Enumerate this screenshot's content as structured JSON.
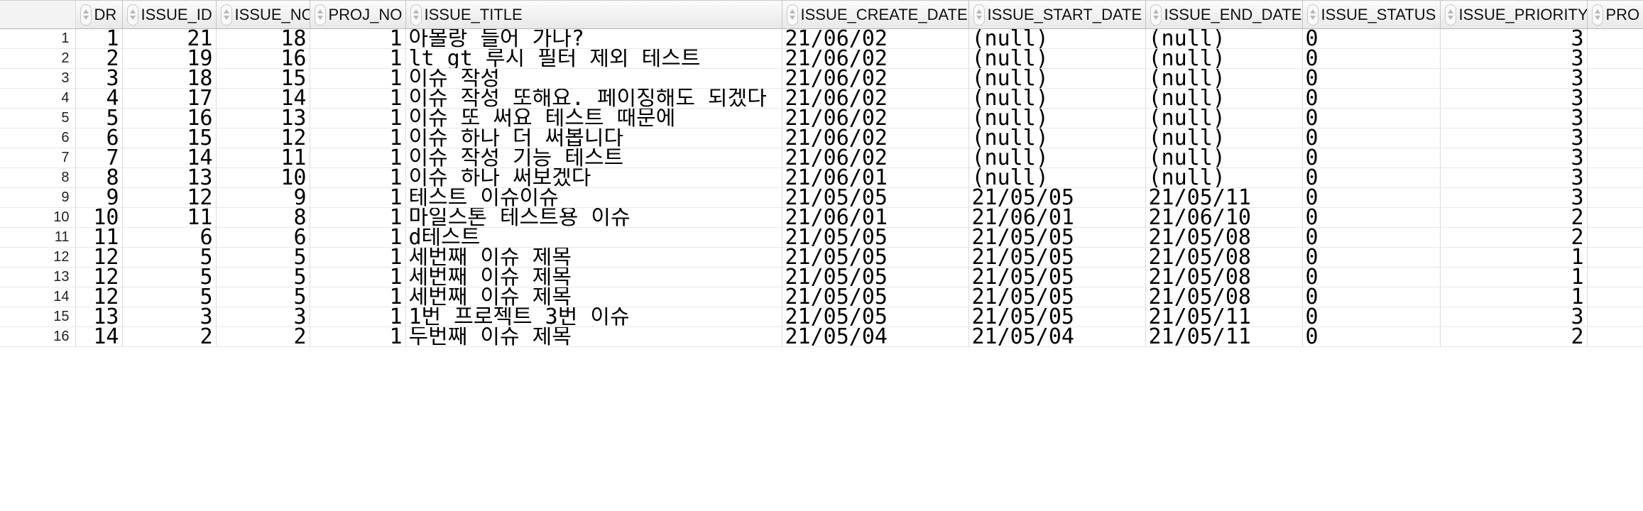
{
  "grid": {
    "columns": [
      {
        "key": "dr",
        "label": "DR",
        "align": "right"
      },
      {
        "key": "issue_id",
        "label": "ISSUE_ID",
        "align": "right"
      },
      {
        "key": "issue_no",
        "label": "ISSUE_NO",
        "align": "right"
      },
      {
        "key": "proj_no",
        "label": "PROJ_NO",
        "align": "right"
      },
      {
        "key": "issue_title",
        "label": "ISSUE_TITLE",
        "align": "left"
      },
      {
        "key": "issue_create_date",
        "label": "ISSUE_CREATE_DATE",
        "align": "left"
      },
      {
        "key": "issue_start_date",
        "label": "ISSUE_START_DATE",
        "align": "left"
      },
      {
        "key": "issue_end_date",
        "label": "ISSUE_END_DATE",
        "align": "left"
      },
      {
        "key": "issue_status",
        "label": "ISSUE_STATUS",
        "align": "left"
      },
      {
        "key": "issue_priority",
        "label": "ISSUE_PRIORITY",
        "align": "right"
      },
      {
        "key": "pro_cut",
        "label": "PRO",
        "align": "left"
      }
    ],
    "rows": [
      {
        "rownum": "1",
        "dr": "1",
        "issue_id": "21",
        "issue_no": "18",
        "proj_no": "1",
        "issue_title": "아몰랑 들어 가나?",
        "issue_create_date": "21/06/02",
        "issue_start_date": "(null)",
        "issue_end_date": "(null)",
        "issue_status": "0",
        "issue_priority": "3",
        "pro_cut": ""
      },
      {
        "rownum": "2",
        "dr": "2",
        "issue_id": "19",
        "issue_no": "16",
        "proj_no": "1",
        "issue_title": "lt gt 루시 필터 제외 테스트",
        "issue_create_date": "21/06/02",
        "issue_start_date": "(null)",
        "issue_end_date": "(null)",
        "issue_status": "0",
        "issue_priority": "3",
        "pro_cut": ""
      },
      {
        "rownum": "3",
        "dr": "3",
        "issue_id": "18",
        "issue_no": "15",
        "proj_no": "1",
        "issue_title": "이슈 작성",
        "issue_create_date": "21/06/02",
        "issue_start_date": "(null)",
        "issue_end_date": "(null)",
        "issue_status": "0",
        "issue_priority": "3",
        "pro_cut": ""
      },
      {
        "rownum": "4",
        "dr": "4",
        "issue_id": "17",
        "issue_no": "14",
        "proj_no": "1",
        "issue_title": "이슈 작성 또해요. 페이징해도 되겠다",
        "issue_create_date": "21/06/02",
        "issue_start_date": "(null)",
        "issue_end_date": "(null)",
        "issue_status": "0",
        "issue_priority": "3",
        "pro_cut": ""
      },
      {
        "rownum": "5",
        "dr": "5",
        "issue_id": "16",
        "issue_no": "13",
        "proj_no": "1",
        "issue_title": "이슈 또 써요 테스트 때문에",
        "issue_create_date": "21/06/02",
        "issue_start_date": "(null)",
        "issue_end_date": "(null)",
        "issue_status": "0",
        "issue_priority": "3",
        "pro_cut": ""
      },
      {
        "rownum": "6",
        "dr": "6",
        "issue_id": "15",
        "issue_no": "12",
        "proj_no": "1",
        "issue_title": "이슈 하나 더 써봅니다",
        "issue_create_date": "21/06/02",
        "issue_start_date": "(null)",
        "issue_end_date": "(null)",
        "issue_status": "0",
        "issue_priority": "3",
        "pro_cut": ""
      },
      {
        "rownum": "7",
        "dr": "7",
        "issue_id": "14",
        "issue_no": "11",
        "proj_no": "1",
        "issue_title": "이슈 작성 기능 테스트",
        "issue_create_date": "21/06/02",
        "issue_start_date": "(null)",
        "issue_end_date": "(null)",
        "issue_status": "0",
        "issue_priority": "3",
        "pro_cut": ""
      },
      {
        "rownum": "8",
        "dr": "8",
        "issue_id": "13",
        "issue_no": "10",
        "proj_no": "1",
        "issue_title": "이슈 하나 써보겠다",
        "issue_create_date": "21/06/01",
        "issue_start_date": "(null)",
        "issue_end_date": "(null)",
        "issue_status": "0",
        "issue_priority": "3",
        "pro_cut": ""
      },
      {
        "rownum": "9",
        "dr": "9",
        "issue_id": "12",
        "issue_no": "9",
        "proj_no": "1",
        "issue_title": "테스트 이슈이슈",
        "issue_create_date": "21/05/05",
        "issue_start_date": "21/05/05",
        "issue_end_date": "21/05/11",
        "issue_status": "0",
        "issue_priority": "3",
        "pro_cut": ""
      },
      {
        "rownum": "10",
        "dr": "10",
        "issue_id": "11",
        "issue_no": "8",
        "proj_no": "1",
        "issue_title": "마일스톤 테스트용 이슈",
        "issue_create_date": "21/06/01",
        "issue_start_date": "21/06/01",
        "issue_end_date": "21/06/10",
        "issue_status": "0",
        "issue_priority": "2",
        "pro_cut": ""
      },
      {
        "rownum": "11",
        "dr": "11",
        "issue_id": "6",
        "issue_no": "6",
        "proj_no": "1",
        "issue_title": "d테스트",
        "issue_create_date": "21/05/05",
        "issue_start_date": "21/05/05",
        "issue_end_date": "21/05/08",
        "issue_status": "0",
        "issue_priority": "2",
        "pro_cut": ""
      },
      {
        "rownum": "12",
        "dr": "12",
        "issue_id": "5",
        "issue_no": "5",
        "proj_no": "1",
        "issue_title": "세번째 이슈 제목",
        "issue_create_date": "21/05/05",
        "issue_start_date": "21/05/05",
        "issue_end_date": "21/05/08",
        "issue_status": "0",
        "issue_priority": "1",
        "pro_cut": ""
      },
      {
        "rownum": "13",
        "dr": "12",
        "issue_id": "5",
        "issue_no": "5",
        "proj_no": "1",
        "issue_title": "세번째 이슈 제목",
        "issue_create_date": "21/05/05",
        "issue_start_date": "21/05/05",
        "issue_end_date": "21/05/08",
        "issue_status": "0",
        "issue_priority": "1",
        "pro_cut": ""
      },
      {
        "rownum": "14",
        "dr": "12",
        "issue_id": "5",
        "issue_no": "5",
        "proj_no": "1",
        "issue_title": "세번째 이슈 제목",
        "issue_create_date": "21/05/05",
        "issue_start_date": "21/05/05",
        "issue_end_date": "21/05/08",
        "issue_status": "0",
        "issue_priority": "1",
        "pro_cut": ""
      },
      {
        "rownum": "15",
        "dr": "13",
        "issue_id": "3",
        "issue_no": "3",
        "proj_no": "1",
        "issue_title": "1번 프로젝트 3번 이슈",
        "issue_create_date": "21/05/05",
        "issue_start_date": "21/05/05",
        "issue_end_date": "21/05/11",
        "issue_status": "0",
        "issue_priority": "3",
        "pro_cut": ""
      },
      {
        "rownum": "16",
        "dr": "14",
        "issue_id": "2",
        "issue_no": "2",
        "proj_no": "1",
        "issue_title": "두번째 이슈 제목",
        "issue_create_date": "21/05/04",
        "issue_start_date": "21/05/04",
        "issue_end_date": "21/05/11",
        "issue_status": "0",
        "issue_priority": "2",
        "pro_cut": ""
      }
    ]
  }
}
